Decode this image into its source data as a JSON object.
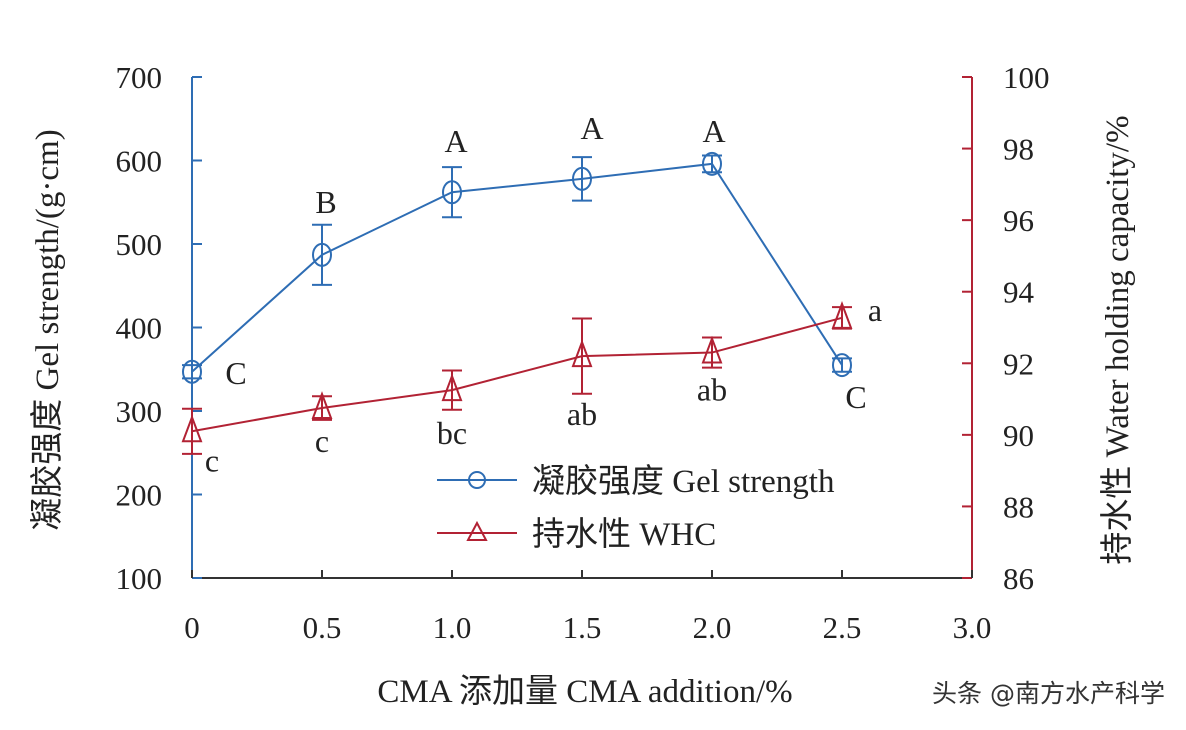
{
  "chart_data": {
    "type": "line",
    "xlabel": "CMA 添加量 CMA addition/%",
    "ylabel_left": "凝胶强度 Gel strength/(g·cm)",
    "ylabel_right": "持水性 Water holding capacity/%",
    "x": [
      0,
      0.5,
      1.0,
      1.5,
      2.0,
      2.5
    ],
    "xlim": [
      0,
      3.0
    ],
    "xticks": [
      "0",
      "0.5",
      "1.0",
      "1.5",
      "2.0",
      "2.5",
      "3.0"
    ],
    "ylim_left": [
      100,
      700
    ],
    "yticks_left": [
      "100",
      "200",
      "300",
      "400",
      "500",
      "600",
      "700"
    ],
    "ylim_right": [
      86,
      100
    ],
    "yticks_right": [
      "86",
      "88",
      "90",
      "92",
      "94",
      "96",
      "98",
      "100"
    ],
    "grid": false,
    "legend_placement": "bottom-center",
    "series": [
      {
        "name": "凝胶强度 Gel strength",
        "axis": "left",
        "marker": "circle",
        "color": "#2e6db4",
        "values": [
          347,
          487,
          562,
          578,
          596,
          355
        ],
        "errors": [
          8,
          36,
          30,
          26,
          10,
          8
        ],
        "labels": [
          "C",
          "B",
          "A",
          "A",
          "A",
          "C"
        ]
      },
      {
        "name": "持水性 WHC",
        "axis": "right",
        "marker": "triangle",
        "color": "#b22234",
        "values": [
          90.1,
          90.75,
          91.25,
          92.2,
          92.3,
          93.27
        ],
        "errors": [
          0.63,
          0.33,
          0.55,
          1.05,
          0.42,
          0.3
        ],
        "labels": [
          "c",
          "c",
          "bc",
          "ab",
          "ab",
          "a"
        ]
      }
    ]
  },
  "watermark": "头条 @南方水产科学"
}
